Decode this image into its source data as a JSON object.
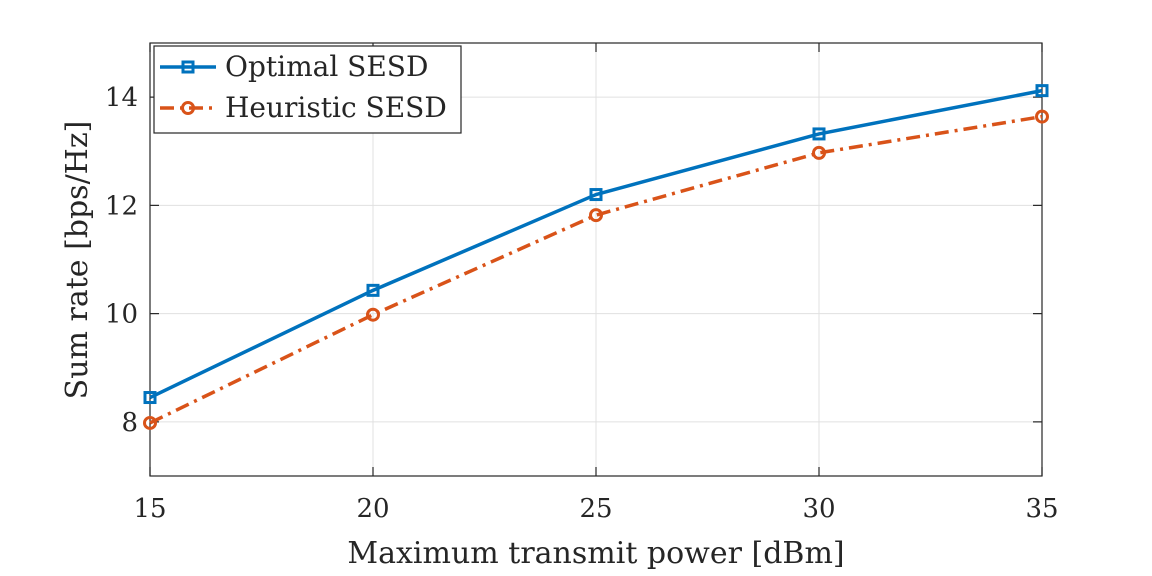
{
  "chart_data": {
    "type": "line",
    "title": "",
    "xlabel": "Maximum transmit power [dBm]",
    "ylabel": "Sum rate [bps/Hz]",
    "x": [
      15,
      20,
      25,
      30,
      35
    ],
    "xlim": [
      15,
      35
    ],
    "ylim": [
      7,
      15
    ],
    "xticks": [
      15,
      20,
      25,
      30,
      35
    ],
    "yticks": [
      8,
      10,
      12,
      14
    ],
    "grid": true,
    "legend_position": "top-left",
    "series": [
      {
        "name": "Optimal SESD",
        "values": [
          8.45,
          10.43,
          12.2,
          13.32,
          14.12
        ],
        "color": "#0072BD",
        "marker": "square",
        "line_style": "solid"
      },
      {
        "name": "Heuristic SESD",
        "values": [
          7.98,
          9.98,
          11.82,
          12.97,
          13.64
        ],
        "color": "#D95319",
        "marker": "circle",
        "line_style": "dash-dot"
      }
    ]
  }
}
